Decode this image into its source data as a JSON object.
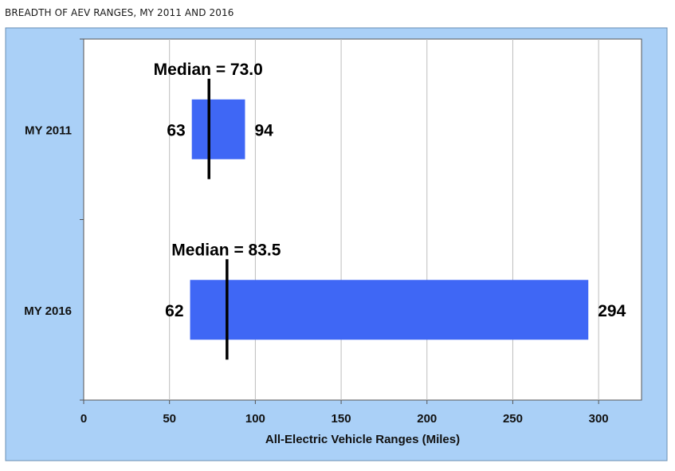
{
  "title": "BREADTH OF AEV RANGES, MY 2011 AND 2016",
  "colors": {
    "frame": "#aad0f7",
    "bar": "#3f67f5",
    "plot_bg": "#ffffff",
    "grid": "#bdbdbd"
  },
  "chart_data": {
    "type": "bar",
    "orientation": "horizontal-range",
    "categories": [
      "MY 2011",
      "MY 2016"
    ],
    "series": [
      {
        "values": [
          {
            "category": "MY 2011",
            "min": 63,
            "max": 94,
            "median": 73.0,
            "min_label": "63",
            "max_label": "94",
            "median_label": "Median = 73.0"
          },
          {
            "category": "MY 2016",
            "min": 62,
            "max": 294,
            "median": 83.5,
            "min_label": "62",
            "max_label": "294",
            "median_label": "Median = 83.5"
          }
        ]
      }
    ],
    "xlabel": "All-Electric Vehicle Ranges (Miles)",
    "ylabel": "",
    "xlim": [
      0,
      325
    ],
    "xticks": [
      0,
      50,
      100,
      150,
      200,
      250,
      300
    ],
    "grid": true
  }
}
